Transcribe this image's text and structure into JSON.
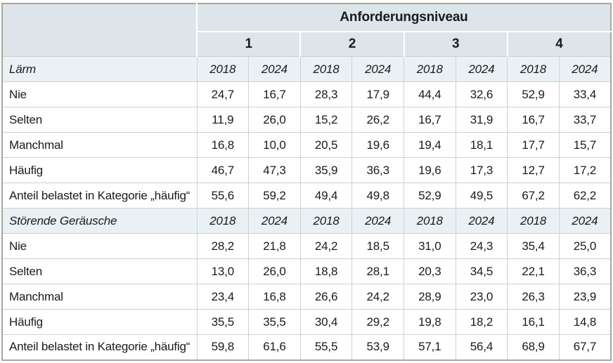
{
  "colors": {
    "header_bg": "#dde5eb",
    "section_row_bg": "#e9f1f5",
    "grid_line": "#ccd2cf",
    "frame": "#a3a8a2",
    "text": "#1b1b1b"
  },
  "table": {
    "top_header": "Anforderungsniveau",
    "level_headers": [
      "1",
      "2",
      "3",
      "4"
    ],
    "year_headers": [
      "2018",
      "2024",
      "2018",
      "2024",
      "2018",
      "2024",
      "2018",
      "2024"
    ],
    "sections": [
      {
        "label": "Lärm",
        "rows": [
          {
            "label": "Nie",
            "values": [
              "24,7",
              "16,7",
              "28,3",
              "17,9",
              "44,4",
              "32,6",
              "52,9",
              "33,4"
            ]
          },
          {
            "label": "Selten",
            "values": [
              "11,9",
              "26,0",
              "15,2",
              "26,2",
              "16,7",
              "31,9",
              "16,7",
              "33,7"
            ]
          },
          {
            "label": "Manchmal",
            "values": [
              "16,8",
              "10,0",
              "20,5",
              "19,6",
              "19,4",
              "18,1",
              "17,7",
              "15,7"
            ]
          },
          {
            "label": "Häufig",
            "values": [
              "46,7",
              "47,3",
              "35,9",
              "36,3",
              "19,6",
              "17,3",
              "12,7",
              "17,2"
            ]
          },
          {
            "label": "Anteil belastet in Kategorie „häufig“",
            "values": [
              "55,6",
              "59,2",
              "49,4",
              "49,8",
              "52,9",
              "49,5",
              "67,2",
              "62,2"
            ]
          }
        ]
      },
      {
        "label": "Störende Geräusche",
        "rows": [
          {
            "label": "Nie",
            "values": [
              "28,2",
              "21,8",
              "24,2",
              "18,5",
              "31,0",
              "24,3",
              "35,4",
              "25,0"
            ]
          },
          {
            "label": "Selten",
            "values": [
              "13,0",
              "26,0",
              "18,8",
              "28,1",
              "20,3",
              "34,5",
              "22,1",
              "36,3"
            ]
          },
          {
            "label": "Manchmal",
            "values": [
              "23,4",
              "16,8",
              "26,6",
              "24,2",
              "28,9",
              "23,0",
              "26,3",
              "23,9"
            ]
          },
          {
            "label": "Häufig",
            "values": [
              "35,5",
              "35,5",
              "30,4",
              "29,2",
              "19,8",
              "18,2",
              "16,1",
              "14,8"
            ]
          },
          {
            "label": "Anteil belastet in Kategorie „häufig“",
            "values": [
              "59,8",
              "61,6",
              "55,5",
              "53,9",
              "57,1",
              "56,4",
              "68,9",
              "67,7"
            ]
          }
        ]
      }
    ]
  }
}
